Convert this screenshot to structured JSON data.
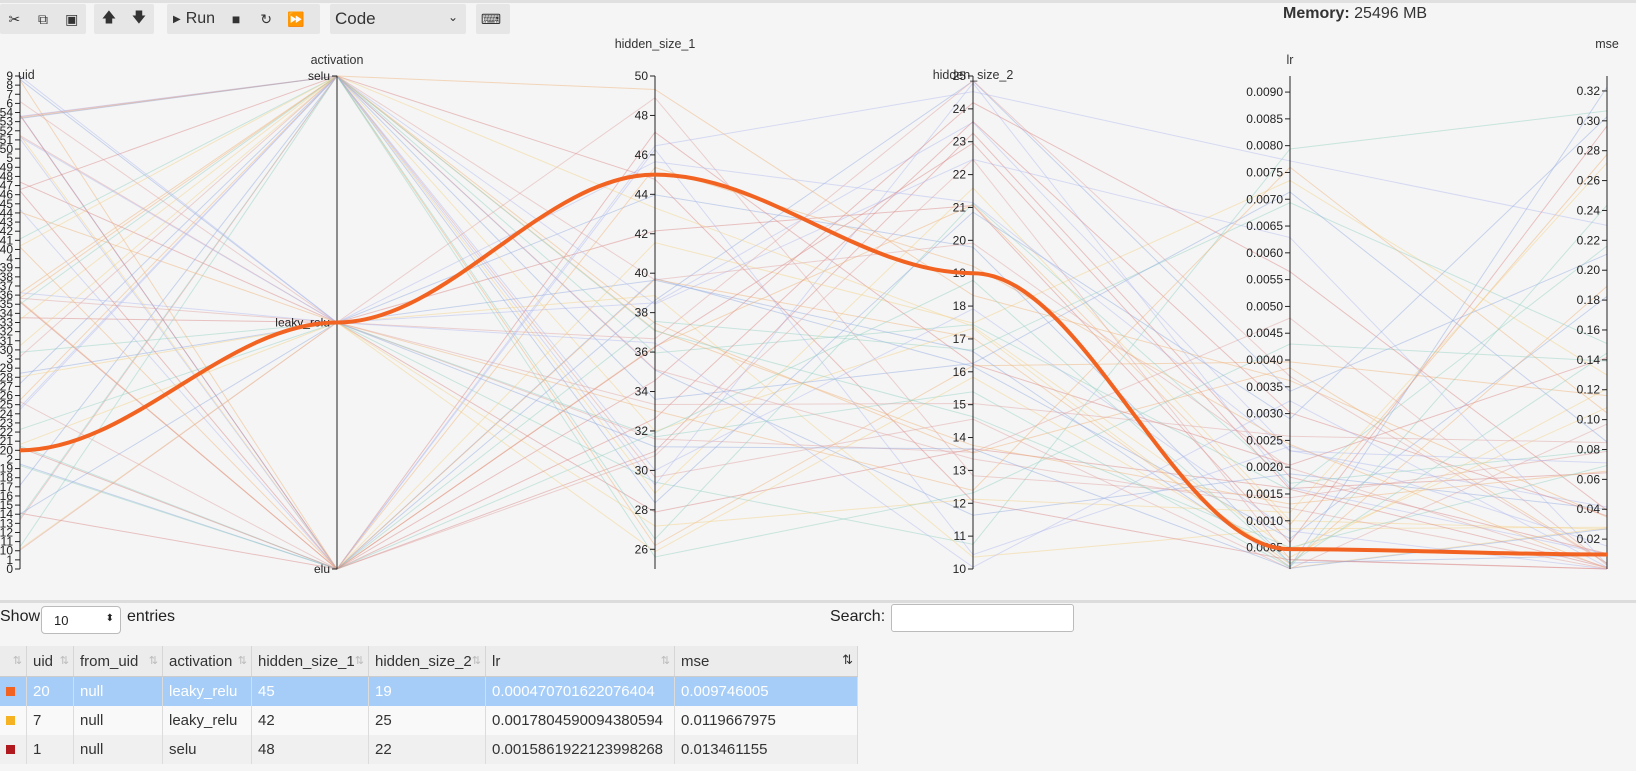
{
  "toolbar": {
    "run_label": "Run",
    "cell_type": "Code"
  },
  "memory": {
    "label": "Memory:",
    "value": "25496 MB"
  },
  "chart_data": {
    "type": "parallel-coordinates",
    "axes": [
      {
        "name": "uid",
        "title": "uid",
        "domain": [
          0,
          54
        ]
      },
      {
        "name": "activation",
        "title": "activation",
        "categories": [
          "selu",
          "leaky_relu",
          "elu"
        ]
      },
      {
        "name": "hidden_size_1",
        "title": "hidden_size_1",
        "domain": [
          25,
          50
        ],
        "ticks": [
          26,
          28,
          30,
          32,
          34,
          36,
          38,
          40,
          42,
          44,
          46,
          48,
          50
        ]
      },
      {
        "name": "hidden_size_2",
        "title": "hidden_size_2",
        "domain": [
          10,
          25
        ],
        "ticks": [
          10,
          11,
          12,
          13,
          14,
          15,
          16,
          17,
          18,
          19,
          20,
          21,
          22,
          23,
          24,
          25
        ]
      },
      {
        "name": "lr",
        "title": "lr",
        "domain": [
          0.0001,
          0.0093
        ],
        "ticks": [
          "0.0005",
          "0.0010",
          "0.0015",
          "0.0020",
          "0.0025",
          "0.0030",
          "0.0035",
          "0.0040",
          "0.0045",
          "0.0050",
          "0.0055",
          "0.0060",
          "0.0065",
          "0.0070",
          "0.0075",
          "0.0080",
          "0.0085",
          "0.0090"
        ]
      },
      {
        "name": "mse",
        "title": "mse",
        "domain": [
          0.0,
          0.33
        ],
        "ticks": [
          "0.02",
          "0.04",
          "0.06",
          "0.08",
          "0.10",
          "0.12",
          "0.14",
          "0.16",
          "0.18",
          "0.20",
          "0.22",
          "0.24",
          "0.26",
          "0.28",
          "0.30",
          "0.32"
        ]
      }
    ],
    "uid_ticks": [
      "0",
      "1",
      "10",
      "11",
      "12",
      "13",
      "14",
      "15",
      "16",
      "17",
      "18",
      "19",
      "2",
      "20",
      "21",
      "22",
      "23",
      "24",
      "25",
      "26",
      "27",
      "28",
      "29",
      "3",
      "30",
      "31",
      "32",
      "33",
      "34",
      "35",
      "36",
      "37",
      "38",
      "39",
      "4",
      "40",
      "41",
      "42",
      "43",
      "44",
      "45",
      "46",
      "47",
      "48",
      "49",
      "5",
      "50",
      "51",
      "52",
      "53",
      "54",
      "6",
      "7",
      "8",
      "9"
    ],
    "highlighted": {
      "uid": 20,
      "activation": "leaky_relu",
      "hidden_size_1": 45,
      "hidden_size_2": 19,
      "lr": 0.00047,
      "mse": 0.0097,
      "color": "#f26322"
    },
    "background_line_colors": [
      "#d98080",
      "#8fa8e0",
      "#f0b070",
      "#90d0c0",
      "#e0a0a0",
      "#b0b8f0",
      "#f5d080"
    ]
  },
  "table": {
    "show_label": "Show",
    "entries_value": "10",
    "entries_label": "entries",
    "search_label": "Search:",
    "columns": [
      "",
      "uid",
      "from_uid",
      "activation",
      "hidden_size_1",
      "hidden_size_2",
      "lr",
      "mse"
    ],
    "rows": [
      {
        "color": "#f26322",
        "uid": "20",
        "from_uid": "null",
        "activation": "leaky_relu",
        "hidden_size_1": "45",
        "hidden_size_2": "19",
        "lr": "0.00047070162207640​4",
        "mse": "0.009746005"
      },
      {
        "color": "#f5b324",
        "uid": "7",
        "from_uid": "null",
        "activation": "leaky_relu",
        "hidden_size_1": "42",
        "hidden_size_2": "25",
        "lr": "0.0017804590094380594",
        "mse": "0.0119667975"
      },
      {
        "color": "#b0191e",
        "uid": "1",
        "from_uid": "null",
        "activation": "selu",
        "hidden_size_1": "48",
        "hidden_size_2": "22",
        "lr": "0.0015861922123998268",
        "mse": "0.013461155"
      }
    ]
  }
}
